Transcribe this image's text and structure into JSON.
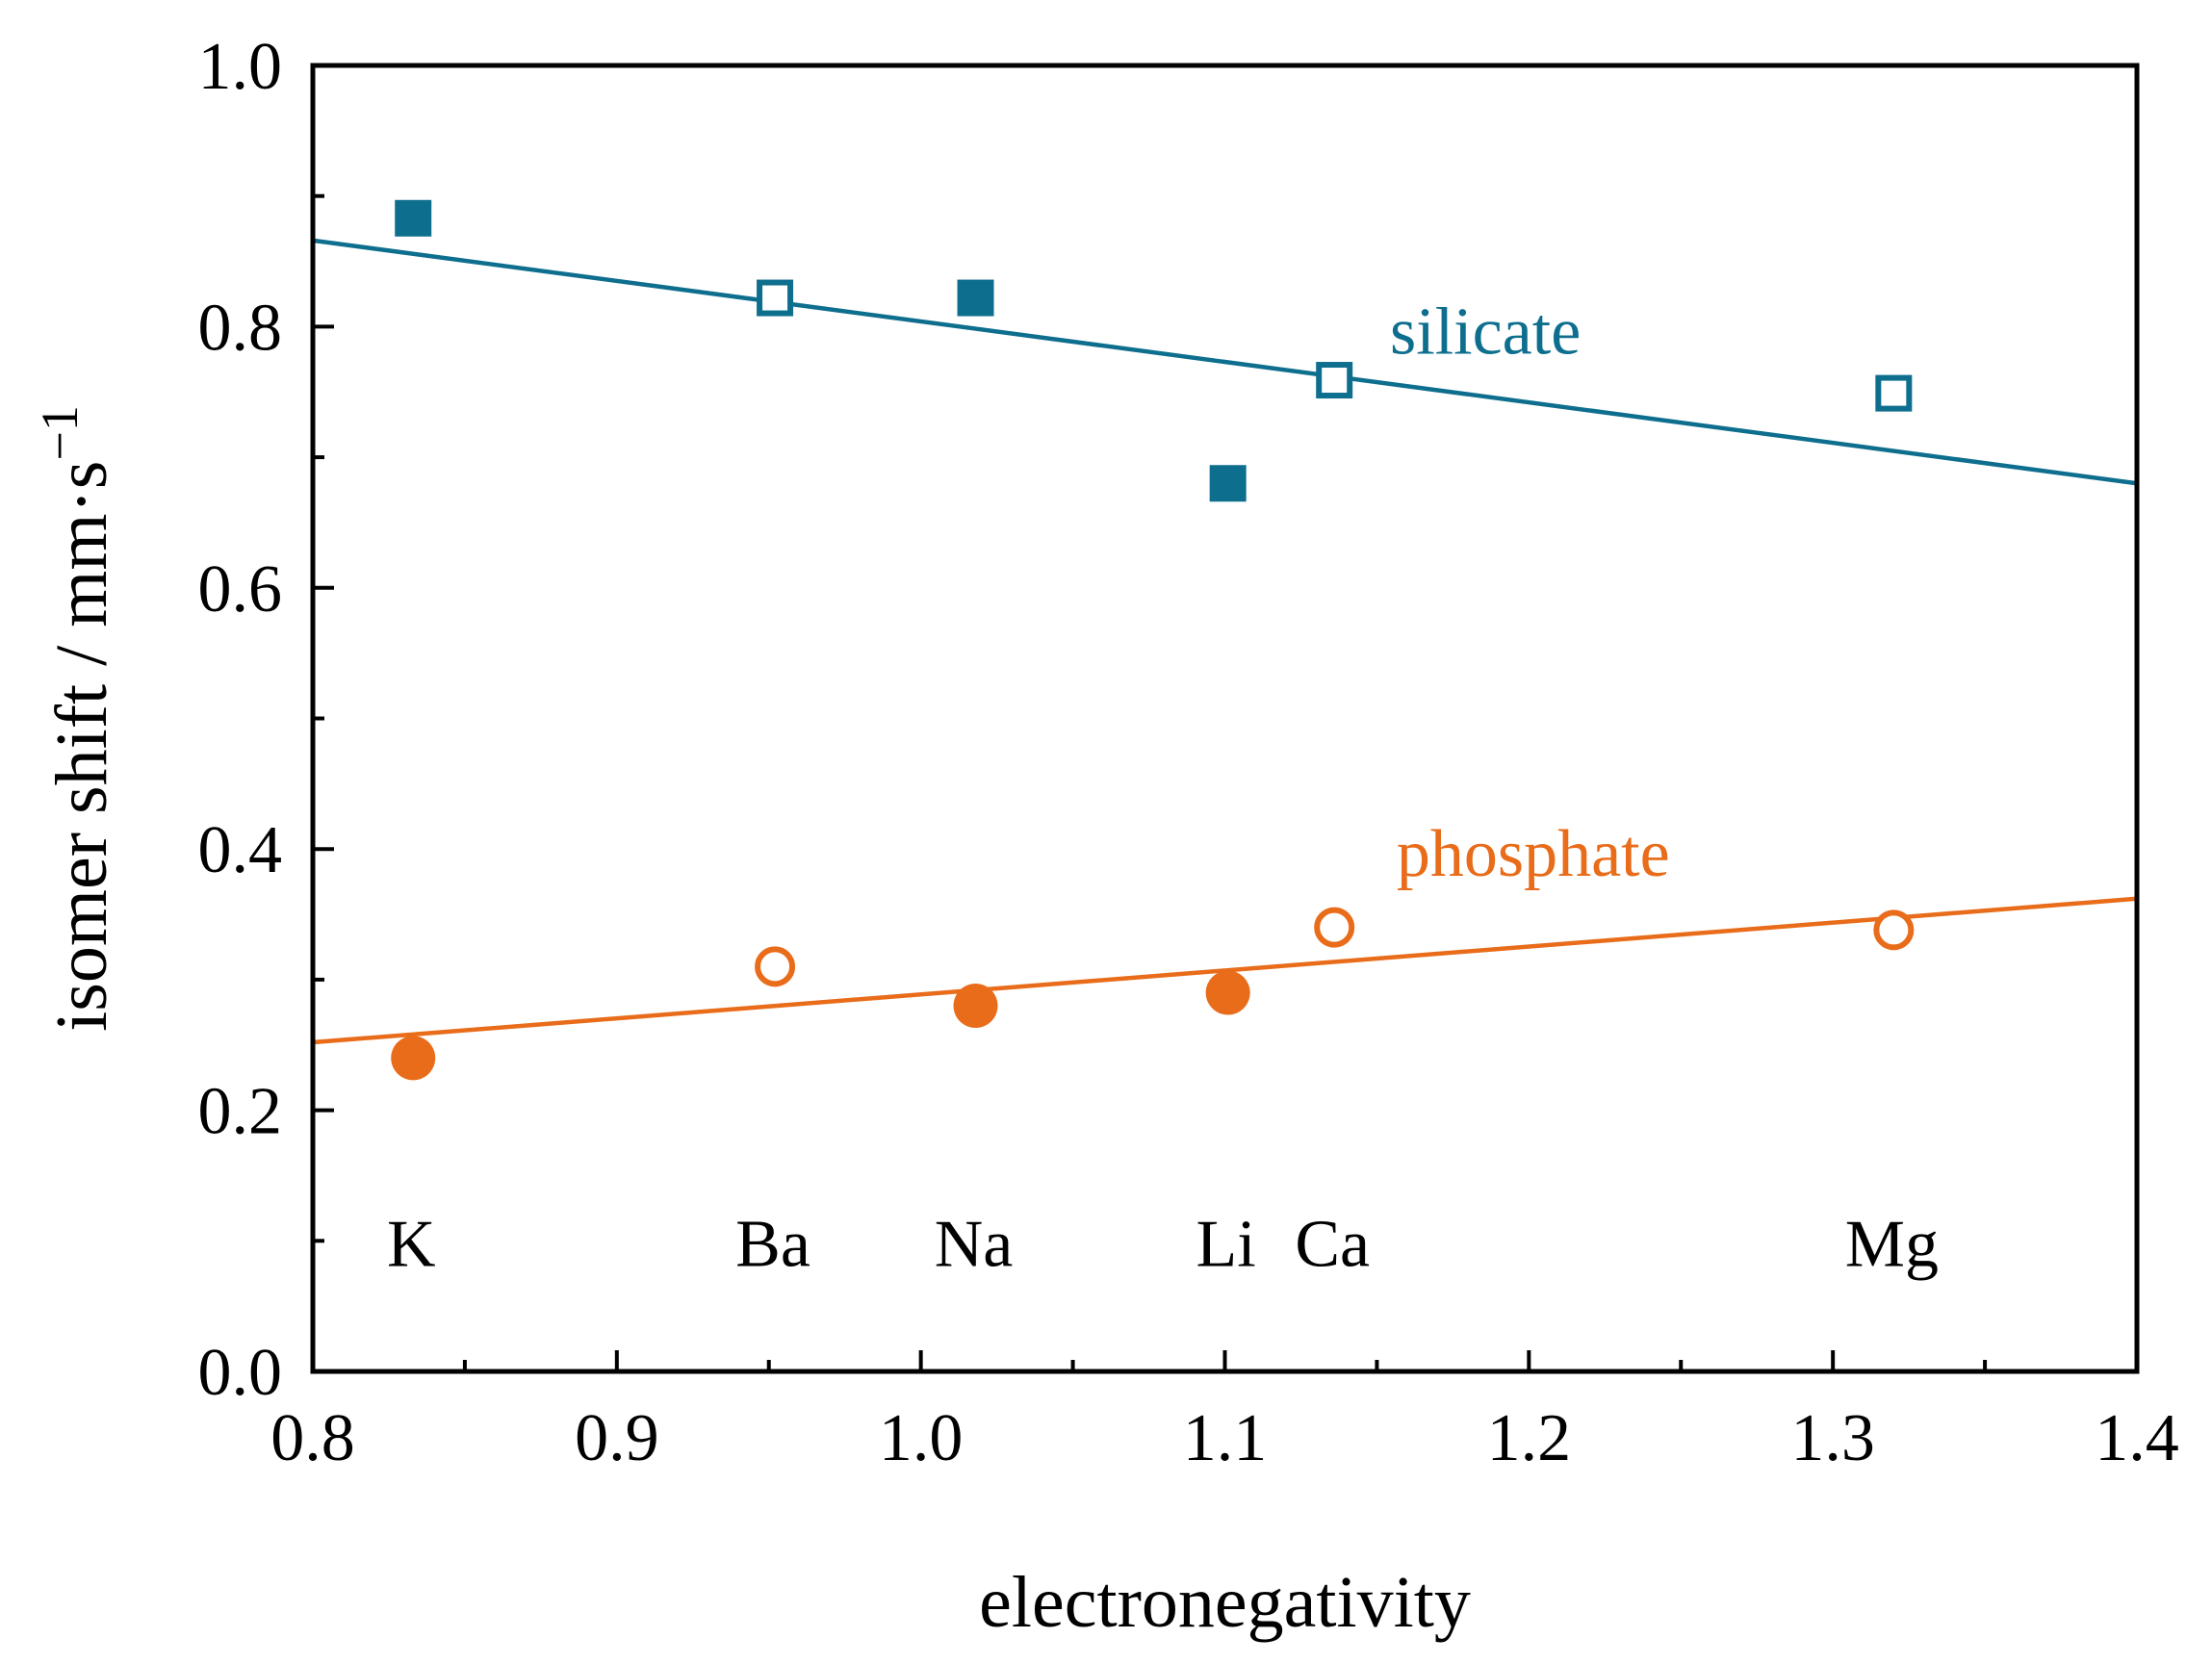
{
  "chart_data": {
    "type": "scatter",
    "xlabel": "electronegativity",
    "ylabel": "isomer shift / mm·s",
    "ylabel_sup": "−1",
    "xlim": [
      0.8,
      1.4
    ],
    "ylim": [
      0.0,
      1.0
    ],
    "x_ticks": [
      "0.8",
      "0.9",
      "1.0",
      "1.1",
      "1.2",
      "1.3",
      "1.4"
    ],
    "y_ticks": [
      "0.0",
      "0.2",
      "0.4",
      "0.6",
      "0.8",
      "1.0"
    ],
    "element_labels": [
      {
        "text": "K",
        "x": 0.833
      },
      {
        "text": "Ba",
        "x": 0.952
      },
      {
        "text": "Na",
        "x": 1.018
      },
      {
        "text": "Li",
        "x": 1.101
      },
      {
        "text": "Ca",
        "x": 1.136
      },
      {
        "text": "Mg",
        "x": 1.32
      }
    ],
    "series": [
      {
        "name": "silicate",
        "color": "#0e6e8e",
        "marker": "square",
        "fit": {
          "x": [
            0.8,
            1.4
          ],
          "y": [
            0.866,
            0.68
          ]
        },
        "points": [
          {
            "element": "K",
            "x": 0.833,
            "y": 0.883,
            "filled": true
          },
          {
            "element": "Ba",
            "x": 0.952,
            "y": 0.822,
            "filled": false
          },
          {
            "element": "Na",
            "x": 1.018,
            "y": 0.822,
            "filled": true
          },
          {
            "element": "Li",
            "x": 1.101,
            "y": 0.68,
            "filled": true
          },
          {
            "element": "Ca",
            "x": 1.136,
            "y": 0.759,
            "filled": false
          },
          {
            "element": "Mg",
            "x": 1.32,
            "y": 0.749,
            "filled": false
          }
        ]
      },
      {
        "name": "phosphate",
        "color": "#e86c1a",
        "marker": "circle",
        "fit": {
          "x": [
            0.8,
            1.4
          ],
          "y": [
            0.252,
            0.362
          ]
        },
        "points": [
          {
            "element": "K",
            "x": 0.833,
            "y": 0.24,
            "filled": true
          },
          {
            "element": "Ba",
            "x": 0.952,
            "y": 0.31,
            "filled": false
          },
          {
            "element": "Na",
            "x": 1.018,
            "y": 0.28,
            "filled": true
          },
          {
            "element": "Li",
            "x": 1.101,
            "y": 0.29,
            "filled": true
          },
          {
            "element": "Ca",
            "x": 1.136,
            "y": 0.34,
            "filled": false
          },
          {
            "element": "Mg",
            "x": 1.32,
            "y": 0.338,
            "filled": false
          }
        ]
      }
    ]
  }
}
